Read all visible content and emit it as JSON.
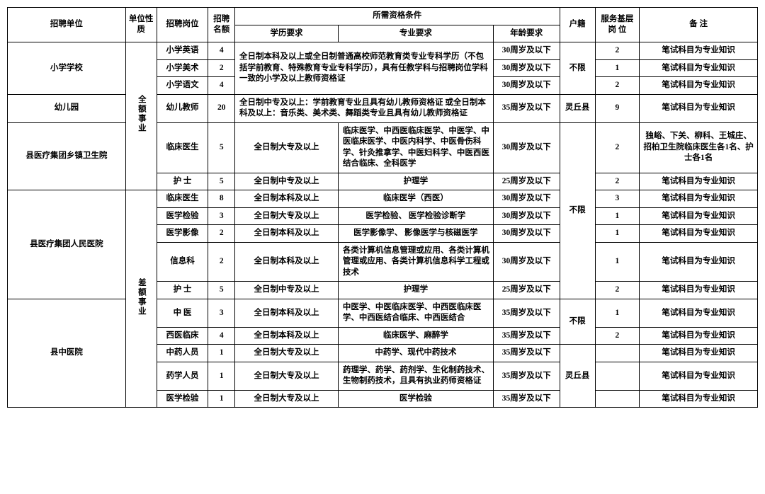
{
  "headers": {
    "unit": "招聘单位",
    "nature": "单位性质",
    "position": "招聘岗位",
    "quota": "招聘名额",
    "qualifications": "所需资格条件",
    "education": "学历要求",
    "major": "专业要求",
    "age": "年龄要求",
    "hukou": "户籍",
    "service": "服务基层岗 位",
    "remark": "备 注"
  },
  "units": {
    "primary_school": "小学学校",
    "kindergarten": "幼儿园",
    "township_hospital": "县医疗集团乡镇卫生院",
    "peoples_hospital": "县医疗集团人民医院",
    "tcm_hospital": "县中医院"
  },
  "natures": {
    "full": "全额事业",
    "diff": "差额事业"
  },
  "hukou": {
    "unlimited": "不限",
    "lingqiu": "灵丘县"
  },
  "rows": {
    "r1": {
      "position": "小学英语",
      "quota": "4",
      "age": "30周岁及以下",
      "service": "2",
      "remark": "笔试科目为专业知识"
    },
    "r2": {
      "position": "小学美术",
      "quota": "2",
      "age": "30周岁及以下",
      "service": "1",
      "remark": "笔试科目为专业知识"
    },
    "r3": {
      "position": "小学语文",
      "quota": "4",
      "age": "30周岁及以下",
      "service": "2",
      "remark": "笔试科目为专业知识"
    },
    "r4": {
      "position": "幼儿教师",
      "quota": "20",
      "major": "全日制中专及以上：学前教育专业且具有幼儿教师资格证\n或全日制本科及以上：音乐类、美术类、舞蹈类专业且具有幼儿教师资格证",
      "age": "35周岁及以下",
      "service": "9",
      "remark": "笔试科目为专业知识"
    },
    "r5": {
      "position": "临床医生",
      "quota": "5",
      "edu": "全日制大专及以上",
      "major": "临床医学、中西医临床医学、中医学、中医临床医学、中医内科学、中医骨伤科学、针灸推拿学、中医妇科学、中医西医结合临床、全科医学",
      "age": "30周岁及以下",
      "service": "2",
      "remark": "独峪、下关、柳科、王城庄、招柏卫生院临床医生各1名、护士各1名"
    },
    "r6": {
      "position": "护 士",
      "quota": "5",
      "edu": "全日制中专及以上",
      "major": "护理学",
      "age": "25周岁及以下",
      "service": "2",
      "remark": "笔试科目为专业知识"
    },
    "r7": {
      "position": "临床医生",
      "quota": "8",
      "edu": "全日制本科及以上",
      "major": "临床医学（西医）",
      "age": "30周岁及以下",
      "service": "3",
      "remark": "笔试科目为专业知识"
    },
    "r8": {
      "position": "医学检验",
      "quota": "3",
      "edu": "全日制大专及以上",
      "major": "医学检验、\n医学检验诊断学",
      "age": "30周岁及以下",
      "service": "1",
      "remark": "笔试科目为专业知识"
    },
    "r9": {
      "position": "医学影像",
      "quota": "2",
      "edu": "全日制本科及以上",
      "major": "医学影像学、\n影像医学与核磁医学",
      "age": "30周岁及以下",
      "service": "1",
      "remark": "笔试科目为专业知识"
    },
    "r10": {
      "position": "信息科",
      "quota": "2",
      "edu": "全日制本科及以上",
      "major": "各类计算机信息管理或应用、各类计算机管理或应用、各类计算机信息科学工程或技术",
      "age": "30周岁及以下",
      "service": "1",
      "remark": "笔试科目为专业知识"
    },
    "r11": {
      "position": "护 士",
      "quota": "5",
      "edu": "全日制中专及以上",
      "major": "护理学",
      "age": "25周岁及以下",
      "service": "2",
      "remark": "笔试科目为专业知识"
    },
    "r12": {
      "position": "中 医",
      "quota": "3",
      "edu": "全日制本科及以上",
      "major": "中医学、中医临床医学、中西医临床医学、中西医结合临床、中西医结合",
      "age": "35周岁及以下",
      "service": "1",
      "remark": "笔试科目为专业知识"
    },
    "r13": {
      "position": "西医临床",
      "quota": "4",
      "edu": "全日制本科及以上",
      "major": "临床医学、麻醉学",
      "age": "35周岁及以下",
      "service": "2",
      "remark": "笔试科目为专业知识"
    },
    "r14": {
      "position": "中药人员",
      "quota": "1",
      "edu": "全日制大专及以上",
      "major": "中药学、现代中药技术",
      "age": "35周岁及以下",
      "service": "",
      "remark": "笔试科目为专业知识"
    },
    "r15": {
      "position": "药学人员",
      "quota": "1",
      "edu": "全日制大专及以上",
      "major": "药理学、药学、药剂学、生化制药技术、生物制药技术，且具有执业药师资格证",
      "age": "35周岁及以下",
      "service": "",
      "remark": "笔试科目为专业知识"
    },
    "r16": {
      "position": "医学检验",
      "quota": "1",
      "edu": "全日制大专及以上",
      "major": "医学检验",
      "age": "35周岁及以下",
      "service": "",
      "remark": "笔试科目为专业知识"
    }
  },
  "shared_edu_major": "全日制本科及以上或全日制普通高校师范教育类专业专科学历（不包括学前教育、特殊教育专业专科学历），具有任教学科与招聘岗位学科一致的小学及以上教师资格证"
}
